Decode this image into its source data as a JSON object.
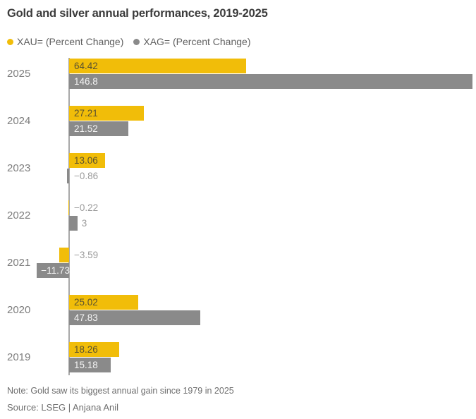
{
  "chart_data": {
    "type": "bar",
    "orientation": "horizontal",
    "title": "Gold and silver annual performances, 2019-2025",
    "categories": [
      "2025",
      "2024",
      "2023",
      "2022",
      "2021",
      "2020",
      "2019"
    ],
    "series": [
      {
        "name": "XAU= (Percent Change)",
        "key": "xau",
        "color": "#f1bd09",
        "values": [
          64.42,
          27.21,
          13.06,
          -0.22,
          -3.59,
          25.02,
          18.26
        ],
        "labels": [
          "64.42",
          "27.21",
          "13.06",
          "−0.22",
          "−3.59",
          "25.02",
          "18.26"
        ]
      },
      {
        "name": "XAG= (Percent Change)",
        "key": "xag",
        "color": "#8a8a8a",
        "values": [
          146.8,
          21.52,
          -0.86,
          3,
          -11.73,
          47.83,
          15.18
        ],
        "labels": [
          "146.8",
          "21.52",
          "−0.86",
          "3",
          "−11.73",
          "47.83",
          "15.18"
        ]
      }
    ],
    "xlim": [
      -15,
      147
    ],
    "grid": false,
    "legend_position": "top"
  },
  "footer": {
    "note": "Note: Gold saw its biggest annual gain since 1979 in 2025",
    "source": "Source: LSEG | Anjana Anil"
  },
  "colors": {
    "gold": "#f1bd09",
    "silver": "#8a8a8a",
    "label_on_gold": "#5a5230",
    "label_on_silver": "#f4f4f4",
    "label_outside": "#9b9b9b",
    "year_label": "#7d7d7d",
    "title": "#3c3c3c",
    "note": "#6e6e6e",
    "axis": "#a8a8a8"
  }
}
